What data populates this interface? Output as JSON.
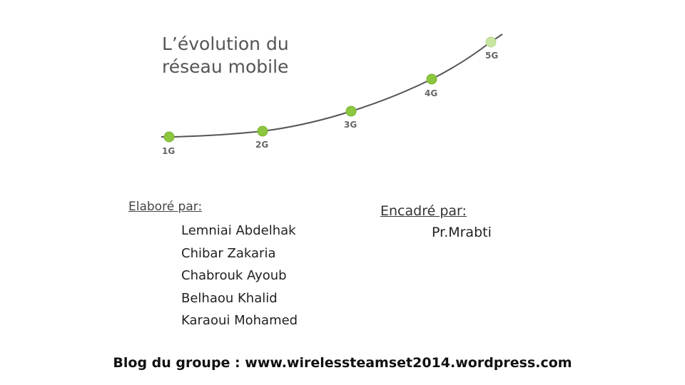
{
  "figure": {
    "title_line1": "L’évolution du",
    "title_line2": "réseau mobile",
    "generations": [
      "1G",
      "2G",
      "3G",
      "4G",
      "5G"
    ],
    "colors": {
      "node": "#8cc63f",
      "node_faded": "#c8e6a0",
      "curve": "#555555",
      "label": "#666666"
    }
  },
  "credits": {
    "prepared_by_label": "Elaboré par:",
    "members": [
      "Lemniai Abdelhak",
      "Chibar Zakaria",
      "Chabrouk Ayoub",
      "Belhaou Khalid",
      "Karaoui Mohamed"
    ],
    "supervised_by_label": "Encadré par:",
    "supervisor": "Pr.Mrabti"
  },
  "footer": {
    "blog": "Blog du groupe : www.wirelessteamset2014.wordpress.com"
  }
}
